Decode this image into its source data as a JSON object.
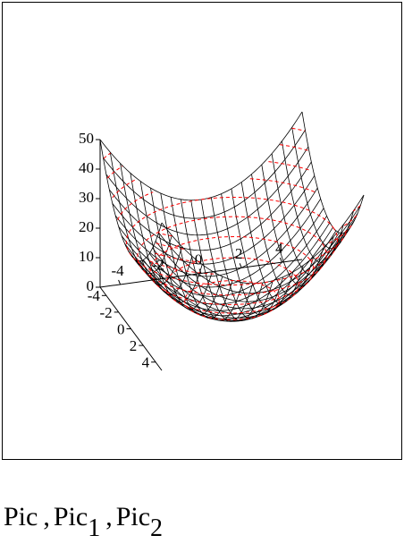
{
  "chart_data": {
    "type": "surface3d",
    "surface": "z = x^2 + y^2",
    "x_range": [
      -5,
      5
    ],
    "y_range": [
      -5,
      5
    ],
    "z_range": [
      0,
      50
    ],
    "z_ticks": [
      "0",
      "10",
      "20",
      "30",
      "40",
      "50"
    ],
    "x_ticks": [
      "-4",
      "-2",
      "0",
      "2",
      "4"
    ],
    "y_ticks": [
      "-4",
      "-2",
      "0",
      "2",
      "4"
    ],
    "mesh_color": "#000000",
    "contour_color": "#ff0000",
    "contour_levels": [
      5,
      10,
      15,
      20,
      25,
      30,
      35,
      40,
      45
    ]
  },
  "caption": {
    "part1": "Pic",
    "sep": ",",
    "part2": "Pic",
    "sub2": "1",
    "part3": "Pic",
    "sub3": "2"
  }
}
